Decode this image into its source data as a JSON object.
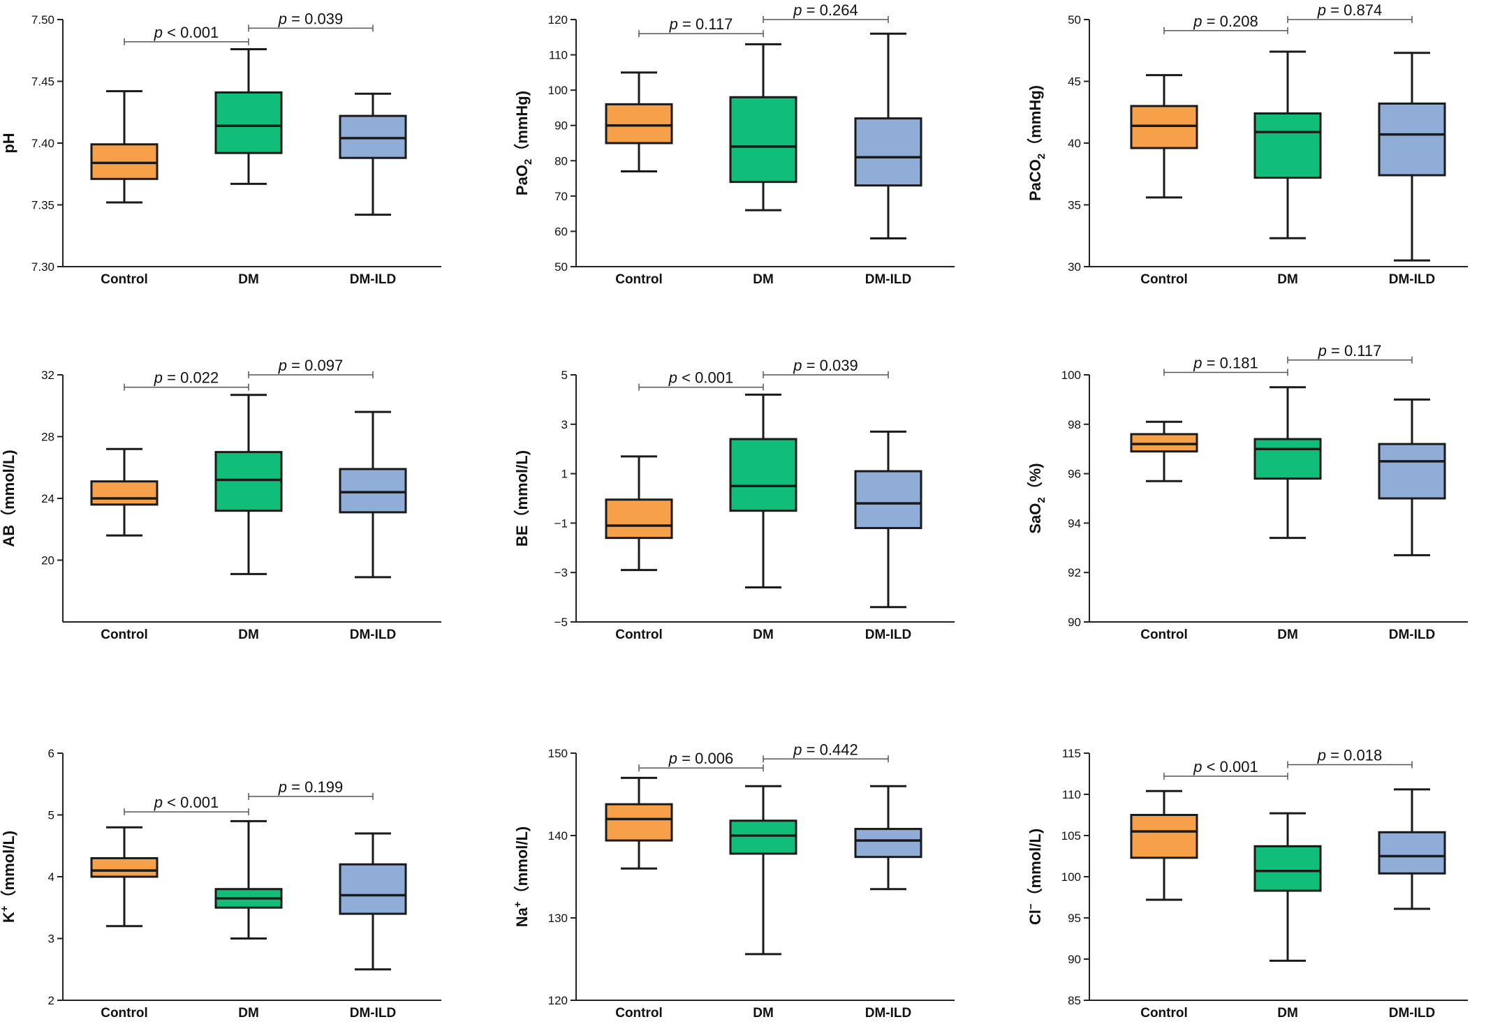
{
  "colors": {
    "Control": "#F6A14A",
    "DM": "#10BE7A",
    "DM-ILD": "#8FADD6",
    "stroke": "#1a1a1a",
    "bracket": "#555555"
  },
  "chart_data": [
    {
      "type": "box",
      "ylabel": "pH",
      "ylim": [
        7.3,
        7.5
      ],
      "yticks": [
        "7.30",
        "7.35",
        "7.40",
        "7.45",
        "7.50"
      ],
      "categories": [
        "Control",
        "DM",
        "DM-ILD"
      ],
      "boxes": [
        {
          "category": "Control",
          "min": 7.352,
          "q1": 7.371,
          "median": 7.384,
          "q3": 7.399,
          "max": 7.442
        },
        {
          "category": "DM",
          "min": 7.367,
          "q1": 7.392,
          "median": 7.414,
          "q3": 7.441,
          "max": 7.476
        },
        {
          "category": "DM-ILD",
          "min": 7.342,
          "q1": 7.388,
          "median": 7.404,
          "q3": 7.422,
          "max": 7.44
        }
      ],
      "p_values": [
        {
          "between": [
            "Control",
            "DM"
          ],
          "label": "p < 0.001",
          "y": 7.482
        },
        {
          "between": [
            "DM",
            "DM-ILD"
          ],
          "label": "p = 0.039",
          "y": 7.493
        }
      ]
    },
    {
      "type": "box",
      "ylabel": "PaO2（mmHg)",
      "ylim": [
        50,
        120
      ],
      "yticks": [
        "50",
        "60",
        "70",
        "80",
        "90",
        "100",
        "110",
        "120"
      ],
      "categories": [
        "Control",
        "DM",
        "DM-ILD"
      ],
      "boxes": [
        {
          "category": "Control",
          "min": 77,
          "q1": 85,
          "median": 90,
          "q3": 96,
          "max": 105
        },
        {
          "category": "DM",
          "min": 66,
          "q1": 74,
          "median": 84,
          "q3": 98,
          "max": 113
        },
        {
          "category": "DM-ILD",
          "min": 58,
          "q1": 73,
          "median": 81,
          "q3": 92,
          "max": 116
        }
      ],
      "p_values": [
        {
          "between": [
            "Control",
            "DM"
          ],
          "label": "p = 0.117",
          "y": 116
        },
        {
          "between": [
            "DM",
            "DM-ILD"
          ],
          "label": "p = 0.264",
          "y": 120
        }
      ]
    },
    {
      "type": "box",
      "ylabel": "PaCO2（mmHg)",
      "ylim": [
        30,
        50
      ],
      "yticks": [
        "30",
        "35",
        "40",
        "45",
        "50"
      ],
      "categories": [
        "Control",
        "DM",
        "DM-ILD"
      ],
      "boxes": [
        {
          "category": "Control",
          "min": 35.6,
          "q1": 39.6,
          "median": 41.4,
          "q3": 43.0,
          "max": 45.5
        },
        {
          "category": "DM",
          "min": 32.3,
          "q1": 37.2,
          "median": 40.9,
          "q3": 42.4,
          "max": 47.4
        },
        {
          "category": "DM-ILD",
          "min": 30.5,
          "q1": 37.4,
          "median": 40.7,
          "q3": 43.2,
          "max": 47.3
        }
      ],
      "p_values": [
        {
          "between": [
            "Control",
            "DM"
          ],
          "label": "p = 0.208",
          "y": 49.1
        },
        {
          "between": [
            "DM",
            "DM-ILD"
          ],
          "label": "p = 0.874",
          "y": 50.0
        }
      ]
    },
    {
      "type": "box",
      "ylabel": "AB（mmol/L)",
      "ylim": [
        16,
        32
      ],
      "yticks": [
        "20",
        "24",
        "28",
        "32"
      ],
      "categories": [
        "Control",
        "DM",
        "DM-ILD"
      ],
      "boxes": [
        {
          "category": "Control",
          "min": 21.6,
          "q1": 23.6,
          "median": 24.0,
          "q3": 25.1,
          "max": 27.2
        },
        {
          "category": "DM",
          "min": 19.1,
          "q1": 23.2,
          "median": 25.2,
          "q3": 27.0,
          "max": 30.7
        },
        {
          "category": "DM-ILD",
          "min": 18.9,
          "q1": 23.1,
          "median": 24.4,
          "q3": 25.9,
          "max": 29.6
        }
      ],
      "p_values": [
        {
          "between": [
            "Control",
            "DM"
          ],
          "label": "p = 0.022",
          "y": 31.2
        },
        {
          "between": [
            "DM",
            "DM-ILD"
          ],
          "label": "p = 0.097",
          "y": 32.0
        }
      ]
    },
    {
      "type": "box",
      "ylabel": "BE（mmol/L)",
      "ylim": [
        -5,
        5
      ],
      "yticks": [
        "-5",
        "-3",
        "-1",
        "1",
        "3",
        "5"
      ],
      "categories": [
        "Control",
        "DM",
        "DM-ILD"
      ],
      "boxes": [
        {
          "category": "Control",
          "min": -2.9,
          "q1": -1.6,
          "median": -1.1,
          "q3": -0.05,
          "max": 1.7
        },
        {
          "category": "DM",
          "min": -3.6,
          "q1": -0.5,
          "median": 0.5,
          "q3": 2.4,
          "max": 4.2
        },
        {
          "category": "DM-ILD",
          "min": -4.4,
          "q1": -1.2,
          "median": -0.2,
          "q3": 1.1,
          "max": 2.7
        }
      ],
      "p_values": [
        {
          "between": [
            "Control",
            "DM"
          ],
          "label": "p < 0.001",
          "y": 4.5
        },
        {
          "between": [
            "DM",
            "DM-ILD"
          ],
          "label": "p = 0.039",
          "y": 5.0
        }
      ]
    },
    {
      "type": "box",
      "ylabel": "SaO2（%)",
      "ylim": [
        90,
        100
      ],
      "yticks": [
        "90",
        "92",
        "94",
        "96",
        "98",
        "100"
      ],
      "categories": [
        "Control",
        "DM",
        "DM-ILD"
      ],
      "boxes": [
        {
          "category": "Control",
          "min": 95.7,
          "q1": 96.9,
          "median": 97.2,
          "q3": 97.6,
          "max": 98.1
        },
        {
          "category": "DM",
          "min": 93.4,
          "q1": 95.8,
          "median": 97.0,
          "q3": 97.4,
          "max": 99.5
        },
        {
          "category": "DM-ILD",
          "min": 92.7,
          "q1": 95.0,
          "median": 96.5,
          "q3": 97.2,
          "max": 99.0
        }
      ],
      "p_values": [
        {
          "between": [
            "Control",
            "DM"
          ],
          "label": "p = 0.181",
          "y": 100.1
        },
        {
          "between": [
            "DM",
            "DM-ILD"
          ],
          "label": "p = 0.117",
          "y": 100.6
        }
      ]
    },
    {
      "type": "box",
      "ylabel": "K+（mmol/L)",
      "ylim": [
        2,
        6
      ],
      "yticks": [
        "2",
        "3",
        "4",
        "5",
        "6"
      ],
      "categories": [
        "Control",
        "DM",
        "DM-ILD"
      ],
      "boxes": [
        {
          "category": "Control",
          "min": 3.2,
          "q1": 4.0,
          "median": 4.1,
          "q3": 4.3,
          "max": 4.8
        },
        {
          "category": "DM",
          "min": 3.0,
          "q1": 3.5,
          "median": 3.65,
          "q3": 3.8,
          "max": 4.9
        },
        {
          "category": "DM-ILD",
          "min": 2.5,
          "q1": 3.4,
          "median": 3.7,
          "q3": 4.2,
          "max": 4.7
        }
      ],
      "p_values": [
        {
          "between": [
            "Control",
            "DM"
          ],
          "label": "p < 0.001",
          "y": 5.05
        },
        {
          "between": [
            "DM",
            "DM-ILD"
          ],
          "label": "p = 0.199",
          "y": 5.3
        }
      ]
    },
    {
      "type": "box",
      "ylabel": "Na+（mmol/L)",
      "ylim": [
        120,
        150
      ],
      "yticks": [
        "120",
        "130",
        "140",
        "150"
      ],
      "categories": [
        "Control",
        "DM",
        "DM-ILD"
      ],
      "boxes": [
        {
          "category": "Control",
          "min": 136,
          "q1": 139.4,
          "median": 142,
          "q3": 143.8,
          "max": 147
        },
        {
          "category": "DM",
          "min": 125.6,
          "q1": 137.8,
          "median": 140,
          "q3": 141.8,
          "max": 146
        },
        {
          "category": "DM-ILD",
          "min": 133.5,
          "q1": 137.4,
          "median": 139.4,
          "q3": 140.8,
          "max": 146
        }
      ],
      "p_values": [
        {
          "between": [
            "Control",
            "DM"
          ],
          "label": "p = 0.006",
          "y": 148.2
        },
        {
          "between": [
            "DM",
            "DM-ILD"
          ],
          "label": "p = 0.442",
          "y": 149.3
        }
      ]
    },
    {
      "type": "box",
      "ylabel": "Cl−（mmol/L)",
      "ylim": [
        85,
        115
      ],
      "yticks": [
        "85",
        "90",
        "95",
        "100",
        "105",
        "110",
        "115"
      ],
      "categories": [
        "Control",
        "DM",
        "DM-ILD"
      ],
      "boxes": [
        {
          "category": "Control",
          "min": 97.2,
          "q1": 102.3,
          "median": 105.5,
          "q3": 107.5,
          "max": 110.4
        },
        {
          "category": "DM",
          "min": 89.8,
          "q1": 98.3,
          "median": 100.7,
          "q3": 103.7,
          "max": 107.7
        },
        {
          "category": "DM-ILD",
          "min": 96.1,
          "q1": 100.4,
          "median": 102.5,
          "q3": 105.4,
          "max": 110.6
        }
      ],
      "p_values": [
        {
          "between": [
            "Control",
            "DM"
          ],
          "label": "p < 0.001",
          "y": 112.2
        },
        {
          "between": [
            "DM",
            "DM-ILD"
          ],
          "label": "p = 0.018",
          "y": 113.6
        }
      ]
    }
  ]
}
